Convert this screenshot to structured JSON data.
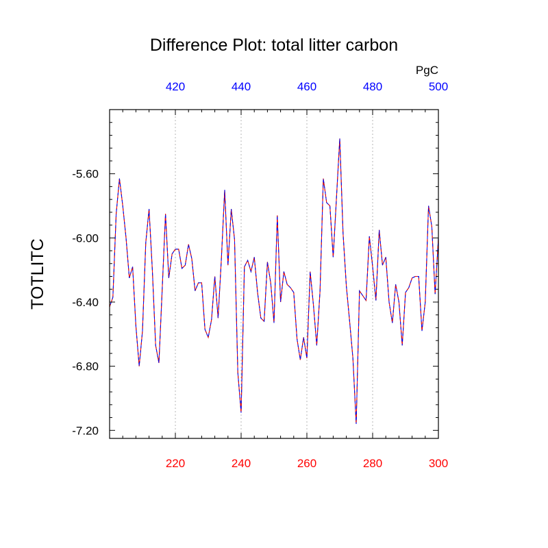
{
  "chart_data": {
    "type": "line",
    "title": "Difference Plot: total litter carbon",
    "units_label": "PgC",
    "ylabel": "TOTLITC",
    "xlabel": "",
    "x_bottom": {
      "range": [
        200,
        300
      ],
      "ticks": [
        220,
        240,
        260,
        280,
        300
      ],
      "tick_labels": [
        "220",
        "240",
        "260",
        "280",
        "300"
      ],
      "color": "#ff0000"
    },
    "x_top": {
      "range": [
        400,
        500
      ],
      "ticks": [
        420,
        440,
        460,
        480,
        500
      ],
      "tick_labels": [
        "420",
        "440",
        "460",
        "480",
        "500"
      ],
      "color": "#0000ff"
    },
    "y_axis": {
      "range": [
        -7.25,
        -5.2
      ],
      "ticks": [
        -5.6,
        -6.0,
        -6.4,
        -6.8,
        -7.2
      ],
      "tick_labels": [
        "-5.60",
        "-6.00",
        "-6.40",
        "-6.80",
        "-7.20"
      ]
    },
    "grid": "dotted vertical lines at top-axis ticks",
    "series_colors": [
      "#000000",
      "#ff0000",
      "#0000ff"
    ],
    "x": [
      200,
      201,
      202,
      203,
      204,
      205,
      206,
      207,
      208,
      209,
      210,
      211,
      212,
      213,
      214,
      215,
      216,
      217,
      218,
      219,
      220,
      221,
      222,
      223,
      224,
      225,
      226,
      227,
      228,
      229,
      230,
      231,
      232,
      233,
      234,
      235,
      236,
      237,
      238,
      239,
      240,
      241,
      242,
      243,
      244,
      245,
      246,
      247,
      248,
      249,
      250,
      251,
      252,
      253,
      254,
      255,
      256,
      257,
      258,
      259,
      260,
      261,
      262,
      263,
      264,
      265,
      266,
      267,
      268,
      269,
      270,
      271,
      272,
      273,
      274,
      275,
      276,
      277,
      278,
      279,
      280,
      281,
      282,
      283,
      284,
      285,
      286,
      287,
      288,
      289,
      290,
      291,
      292,
      293,
      294,
      295,
      296,
      297,
      298,
      299,
      300
    ],
    "values": [
      -6.43,
      -6.37,
      -5.85,
      -5.63,
      -5.8,
      -6.0,
      -6.25,
      -6.18,
      -6.55,
      -6.8,
      -6.58,
      -6.03,
      -5.82,
      -6.2,
      -6.67,
      -6.78,
      -6.32,
      -5.85,
      -6.25,
      -6.1,
      -6.07,
      -6.07,
      -6.19,
      -6.17,
      -6.04,
      -6.13,
      -6.33,
      -6.28,
      -6.28,
      -6.57,
      -6.62,
      -6.51,
      -6.24,
      -6.5,
      -6.13,
      -5.7,
      -6.17,
      -5.82,
      -6.01,
      -6.84,
      -7.09,
      -6.18,
      -6.14,
      -6.21,
      -6.12,
      -6.34,
      -6.5,
      -6.52,
      -6.15,
      -6.28,
      -6.53,
      -5.86,
      -6.4,
      -6.21,
      -6.29,
      -6.31,
      -6.34,
      -6.63,
      -6.76,
      -6.62,
      -6.75,
      -6.21,
      -6.42,
      -6.67,
      -6.33,
      -5.63,
      -5.78,
      -5.8,
      -6.12,
      -5.75,
      -5.38,
      -5.97,
      -6.3,
      -6.52,
      -6.75,
      -7.16,
      -6.33,
      -6.36,
      -6.39,
      -5.99,
      -6.18,
      -6.39,
      -5.95,
      -6.17,
      -6.12,
      -6.4,
      -6.53,
      -6.29,
      -6.4,
      -6.67,
      -6.34,
      -6.31,
      -6.25,
      -6.24,
      -6.24,
      -6.58,
      -6.4,
      -5.8,
      -5.93,
      -6.35,
      -6.0
    ]
  }
}
